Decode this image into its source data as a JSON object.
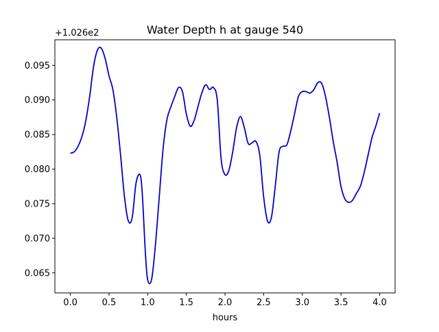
{
  "chart_data": {
    "type": "line",
    "title": "Water Depth h at gauge 540",
    "xlabel": "hours",
    "ylabel": "",
    "offset_label": "+1.026e2",
    "xlim": [
      -0.2,
      4.2
    ],
    "ylim": [
      0.0621,
      0.0987
    ],
    "xticks": [
      0.0,
      0.5,
      1.0,
      1.5,
      2.0,
      2.5,
      3.0,
      3.5,
      4.0
    ],
    "xtick_labels": [
      "0.0",
      "0.5",
      "1.0",
      "1.5",
      "2.0",
      "2.5",
      "3.0",
      "3.5",
      "4.0"
    ],
    "yticks": [
      0.065,
      0.07,
      0.075,
      0.08,
      0.085,
      0.09,
      0.095
    ],
    "ytick_labels": [
      "0.065",
      "0.070",
      "0.075",
      "0.080",
      "0.085",
      "0.090",
      "0.095"
    ],
    "grid": false,
    "line_color": "#0000cc",
    "series": [
      {
        "x": [
          0.0,
          0.05,
          0.1,
          0.15,
          0.2,
          0.25,
          0.3,
          0.35,
          0.4,
          0.45,
          0.5,
          0.55,
          0.6,
          0.65,
          0.7,
          0.75,
          0.8,
          0.85,
          0.9,
          0.93,
          0.97,
          1.0,
          1.05,
          1.1,
          1.15,
          1.2,
          1.25,
          1.3,
          1.35,
          1.4,
          1.45,
          1.5,
          1.55,
          1.6,
          1.65,
          1.7,
          1.75,
          1.8,
          1.85,
          1.9,
          1.95,
          2.0,
          2.05,
          2.1,
          2.15,
          2.2,
          2.25,
          2.3,
          2.35,
          2.4,
          2.45,
          2.5,
          2.55,
          2.6,
          2.65,
          2.7,
          2.75,
          2.8,
          2.85,
          2.9,
          2.95,
          3.0,
          3.05,
          3.1,
          3.15,
          3.2,
          3.25,
          3.3,
          3.35,
          3.4,
          3.45,
          3.5,
          3.55,
          3.6,
          3.65,
          3.7,
          3.75,
          3.8,
          3.85,
          3.9,
          3.95,
          4.0
        ],
        "y": [
          0.0823,
          0.0825,
          0.0833,
          0.0847,
          0.087,
          0.0905,
          0.0948,
          0.0972,
          0.0975,
          0.096,
          0.0935,
          0.0915,
          0.0875,
          0.082,
          0.076,
          0.0725,
          0.073,
          0.078,
          0.0792,
          0.0765,
          0.068,
          0.064,
          0.064,
          0.069,
          0.076,
          0.083,
          0.0872,
          0.089,
          0.0905,
          0.0918,
          0.0912,
          0.088,
          0.0862,
          0.087,
          0.089,
          0.091,
          0.0922,
          0.0915,
          0.0918,
          0.09,
          0.0815,
          0.0792,
          0.0798,
          0.0825,
          0.086,
          0.0876,
          0.086,
          0.0837,
          0.0838,
          0.084,
          0.082,
          0.076,
          0.0725,
          0.073,
          0.0775,
          0.0825,
          0.0833,
          0.0835,
          0.0855,
          0.088,
          0.0905,
          0.0912,
          0.0912,
          0.091,
          0.0915,
          0.0925,
          0.0924,
          0.0905,
          0.0875,
          0.084,
          0.081,
          0.0775,
          0.0757,
          0.0752,
          0.0755,
          0.0765,
          0.0775,
          0.0795,
          0.082,
          0.0845,
          0.0862,
          0.0881
        ]
      }
    ]
  }
}
